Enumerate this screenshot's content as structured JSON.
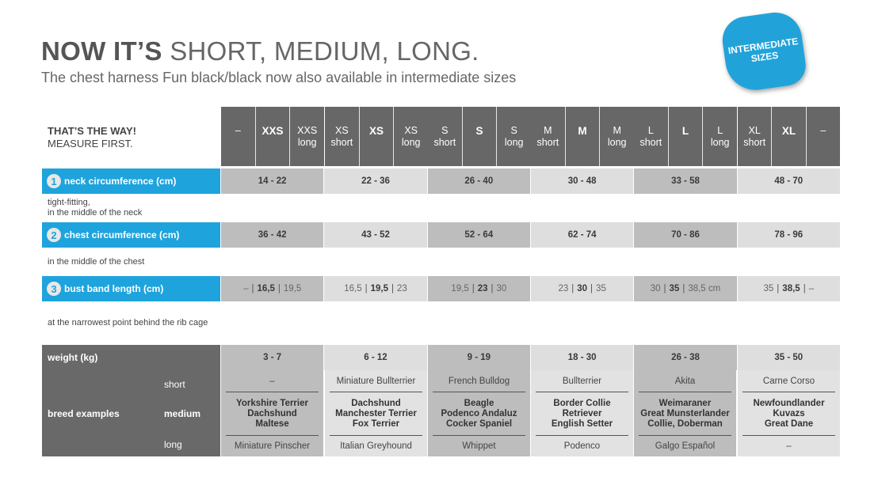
{
  "title": {
    "bold": "NOW IT’S",
    "rest": " SHORT, MEDIUM, LONG."
  },
  "subtitle": "The chest harness Fun black/black now also available in intermediate sizes",
  "badge": {
    "line1": "INTERMEDIATE",
    "line2": "SIZES",
    "color": "#21a3d9"
  },
  "header_left": {
    "line1": "THAT’S THE WAY!",
    "line2": "MEASURE FIRST."
  },
  "size_groups": [
    [
      {
        "t": "–",
        "s": ""
      },
      {
        "t": "XXS",
        "s": "",
        "b": true
      },
      {
        "t": "XXS",
        "s": "long"
      }
    ],
    [
      {
        "t": "XS",
        "s": "short"
      },
      {
        "t": "XS",
        "s": "",
        "b": true
      },
      {
        "t": "XS",
        "s": "long"
      }
    ],
    [
      {
        "t": "S",
        "s": "short"
      },
      {
        "t": "S",
        "s": "",
        "b": true
      },
      {
        "t": "S",
        "s": "long"
      }
    ],
    [
      {
        "t": "M",
        "s": "short"
      },
      {
        "t": "M",
        "s": "",
        "b": true
      },
      {
        "t": "M",
        "s": "long"
      }
    ],
    [
      {
        "t": "L",
        "s": "short"
      },
      {
        "t": "L",
        "s": "",
        "b": true
      },
      {
        "t": "L",
        "s": "long"
      }
    ],
    [
      {
        "t": "XL",
        "s": "short"
      },
      {
        "t": "XL",
        "s": "",
        "b": true
      },
      {
        "t": "–",
        "s": ""
      }
    ]
  ],
  "neck": {
    "num": "1",
    "label": "neck circumference (cm)",
    "values": [
      "14 - 22",
      "22 - 36",
      "26 - 40",
      "30 - 48",
      "33 - 58",
      "48 - 70"
    ],
    "note1": "tight-fitting,",
    "note2": "in the middle of the neck"
  },
  "chest": {
    "num": "2",
    "label": "chest circumference (cm)",
    "values": [
      "36 - 42",
      "43 - 52",
      "52 - 64",
      "62 - 74",
      "70 - 86",
      "78 - 96"
    ],
    "note": "in the middle of the chest"
  },
  "bust": {
    "num": "3",
    "label": "bust band length (cm)",
    "values": [
      [
        "–",
        "16,5",
        "19,5"
      ],
      [
        "16,5",
        "19,5",
        "23"
      ],
      [
        "19,5",
        "23",
        "30"
      ],
      [
        "23",
        "30",
        "35"
      ],
      [
        "30",
        "35",
        "38,5 cm"
      ],
      [
        "35",
        "38,5",
        "–"
      ]
    ],
    "note": "at the narrowest point behind the rib cage"
  },
  "weight": {
    "label": "weight (kg)",
    "values": [
      "3 - 7",
      "6 - 12",
      "9 - 19",
      "18 - 30",
      "26 - 38",
      "35 - 50"
    ]
  },
  "breeds": {
    "label": "breed examples",
    "short_label": "short",
    "medium_label": "medium",
    "long_label": "long",
    "columns": [
      {
        "short": "–",
        "medium": [
          "Yorkshire Terrier",
          "Dachshund",
          "Maltese"
        ],
        "long": "Miniature Pinscher"
      },
      {
        "short": "Miniature Bullterrier",
        "medium": [
          "Dachshund",
          "Manchester Terrier",
          "Fox Terrier"
        ],
        "long": "Italian Greyhound"
      },
      {
        "short": "French Bulldog",
        "medium": [
          "Beagle",
          "Podenco Andaluz",
          "Cocker Spaniel"
        ],
        "long": "Whippet"
      },
      {
        "short": "Bullterrier",
        "medium": [
          "Border Collie",
          "Retriever",
          "English Setter"
        ],
        "long": "Podenco"
      },
      {
        "short": "Akita",
        "medium": [
          "Weimaraner",
          "Great Munsterlander",
          "Collie, Doberman"
        ],
        "long": "Galgo Español"
      },
      {
        "short": "Carne Corso",
        "medium": [
          "Newfoundlander",
          "Kuvazs",
          "Great Dane"
        ],
        "long": "–"
      }
    ]
  },
  "colors": {
    "accent_blue": "#1fa3dc",
    "header_gray": "#676767",
    "cell_dark": "#bdbdbd",
    "cell_light": "#dedede"
  }
}
